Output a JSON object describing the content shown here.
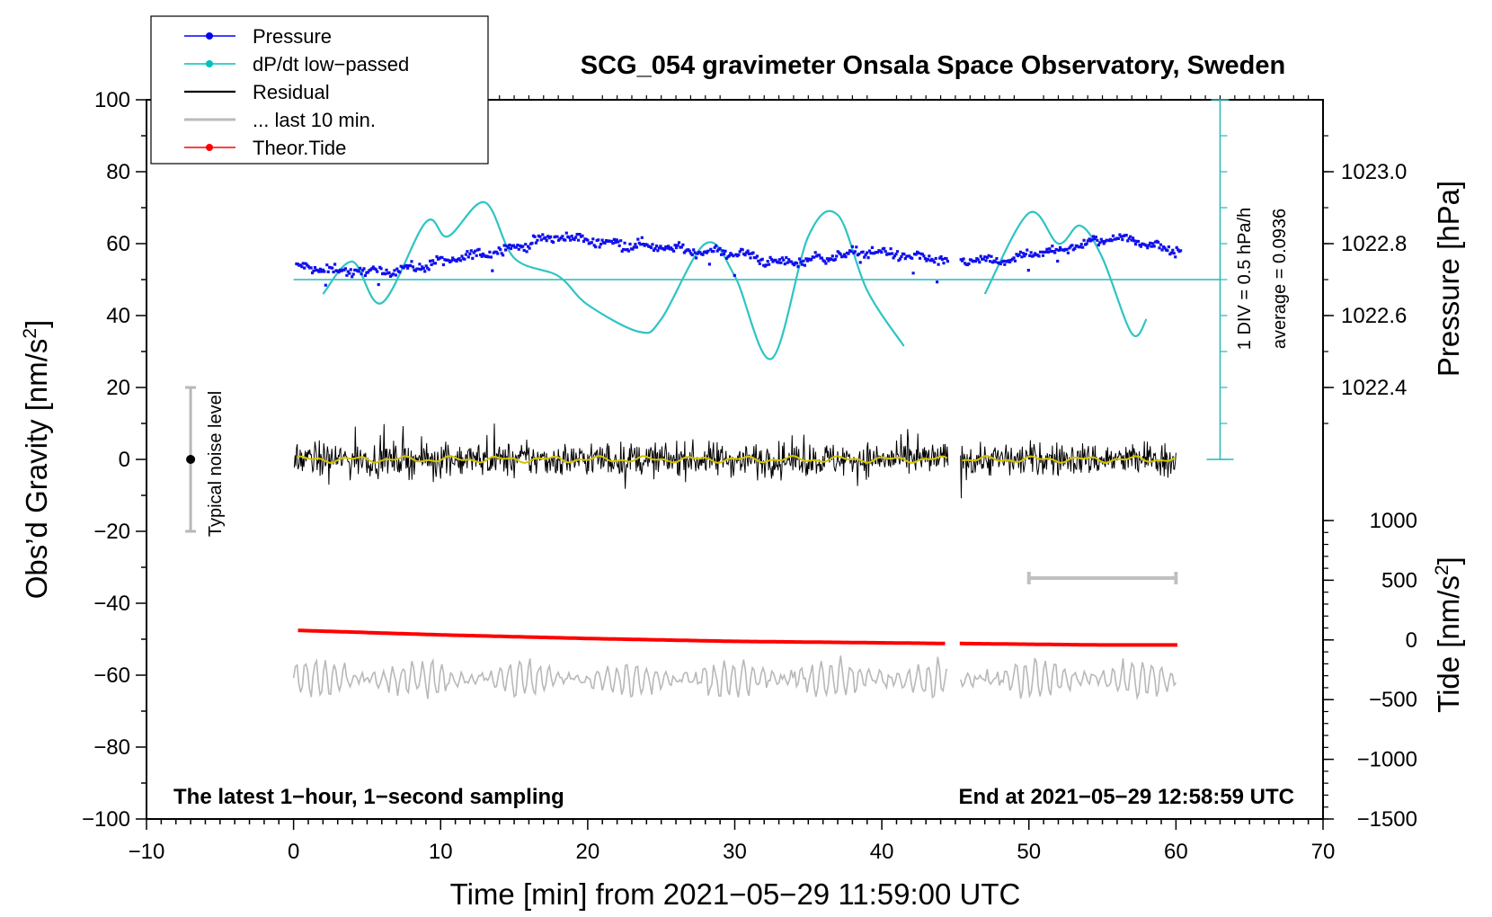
{
  "chart_data": {
    "type": "line",
    "title": "SCG_054 gravimeter Onsala Space Observatory, Sweden",
    "xlabel": "Time [min] from 2021−05−29 11:59:00 UTC",
    "ylabel_left": "Obs’d Gravity [nm/s",
    "ylabel_sup": "2",
    "ylabel_close": "]",
    "ylabel_pressure": "Pressure [hPa]",
    "ylabel_tide": "Tide [nm/s",
    "ylabel_tide_sup": "2",
    "ylabel_tide_close": "]",
    "xlim": [
      -10,
      70
    ],
    "ylim": [
      -100,
      100
    ],
    "x_ticks": [
      "−10",
      "0",
      "10",
      "20",
      "30",
      "40",
      "50",
      "60",
      "70"
    ],
    "y_ticks": [
      "−100",
      "−80",
      "−60",
      "−40",
      "−20",
      "0",
      "20",
      "40",
      "60",
      "80",
      "100"
    ],
    "pressure_ticks": [
      "1022.4",
      "1022.6",
      "1022.8",
      "1023.0"
    ],
    "tide_ticks": [
      "−1500",
      "−1000",
      "−500",
      "0",
      "500",
      "1000"
    ],
    "legend": [
      {
        "name": "Pressure",
        "color": "#0000ff",
        "marker": true
      },
      {
        "name": "dP/dt low−passed",
        "color": "#00c0c0",
        "marker": true
      },
      {
        "name": "Residual",
        "color": "#000000",
        "marker": false
      },
      {
        "name": "... last 10 min.",
        "color": "#bbbbbb",
        "marker": false
      },
      {
        "name": "Theor.Tide",
        "color": "#ff0000",
        "marker": true
      }
    ],
    "annotations": {
      "bottom_left": "The latest 1−hour, 1−second sampling",
      "bottom_right": "End at 2021−05−29 12:58:59 UTC",
      "noise_label": "Typical noise level",
      "div_label": "1 DIV = 0.5 hPa/h",
      "average_label": "average = 0.0936"
    },
    "noise_bar": {
      "x": -7,
      "y_low": -20,
      "y_high": 20
    },
    "last10_bar": {
      "x_start": 50,
      "x_end": 60,
      "y": -33
    },
    "gap": [
      44.5,
      45.3
    ],
    "series": {
      "pressure_key": {
        "x": [
          0,
          3,
          6,
          9,
          12,
          15,
          18,
          21,
          24,
          27,
          30,
          33,
          36,
          39,
          42,
          44.5,
          45.3,
          48,
          51,
          54,
          56,
          58,
          60
        ],
        "y": [
          53.5,
          52.5,
          52,
          54,
          56.5,
          59,
          62,
          60.5,
          59.5,
          58,
          57.5,
          54.5,
          56,
          58,
          56.5,
          55,
          55.5,
          55,
          57.5,
          60,
          62,
          60,
          58
        ]
      },
      "dpdt_key": {
        "x": [
          2,
          4,
          6,
          9,
          10.5,
          13,
          15,
          18,
          20,
          23.5,
          25,
          28,
          30,
          32.5,
          35,
          37,
          39,
          41.5,
          47,
          50,
          52,
          53.5,
          55,
          57,
          58
        ],
        "y": [
          46,
          55,
          43.5,
          66,
          62,
          71.5,
          56,
          51,
          43,
          35.5,
          39,
          60,
          51,
          28,
          62,
          68,
          47,
          31.5,
          46,
          68.5,
          60,
          65,
          56,
          35,
          39
        ]
      },
      "dpdt_baseline": 50,
      "residual_baseline": 0,
      "residual_amplitude": 6,
      "tide_key": {
        "x": [
          0,
          10,
          20,
          30,
          40,
          44.5,
          45.3,
          50,
          55,
          60
        ],
        "y": [
          -47.5,
          -48.8,
          -49.8,
          -50.6,
          -51,
          -51.2,
          -51.2,
          -51.4,
          -51.6,
          -51.6
        ]
      },
      "last10_baseline": -61,
      "last10_amplitude": 5
    }
  }
}
